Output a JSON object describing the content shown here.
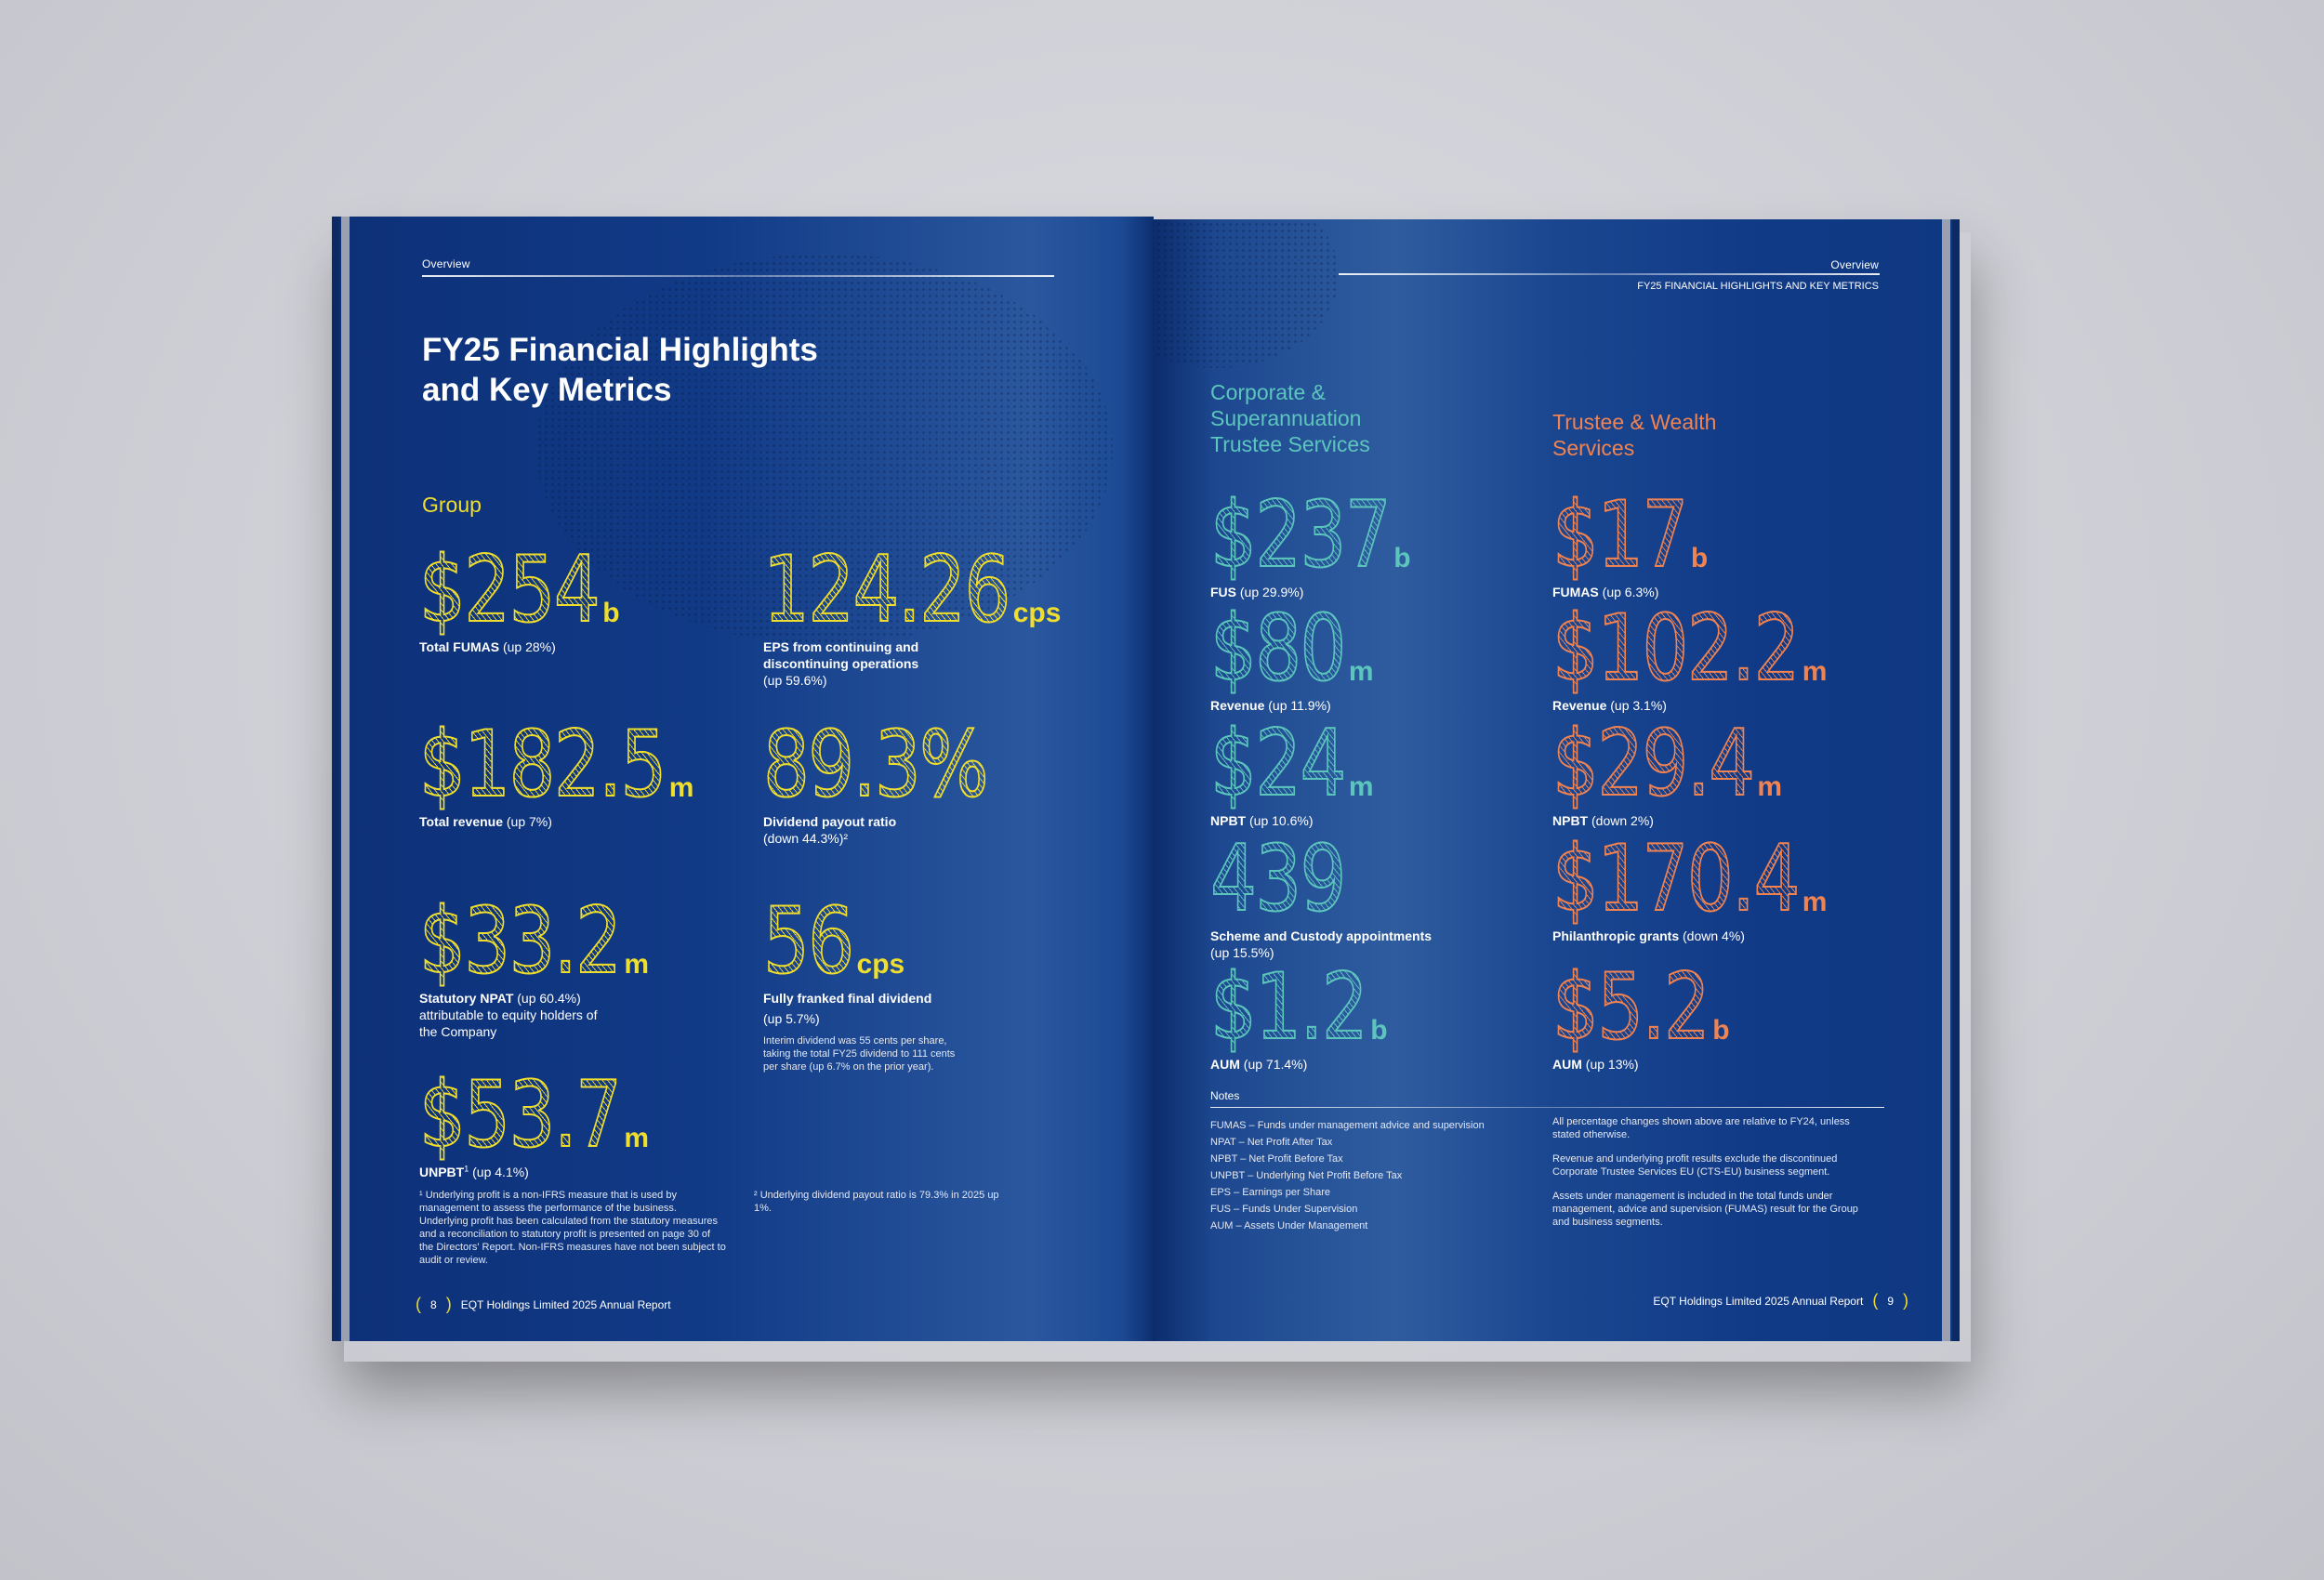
{
  "colors": {
    "yellow": "#f0de2e",
    "teal": "#5cc6bd",
    "orange": "#f08352",
    "page_blue": "#113a86"
  },
  "left_page": {
    "section": "Overview",
    "title_line1": "FY25 Financial Highlights",
    "title_line2": "and Key Metrics",
    "group_heading": "Group",
    "metrics": [
      {
        "value": "$254",
        "unit": "b",
        "label_bold": "Total FUMAS",
        "label_rest": " (up 28%)"
      },
      {
        "value": "124.26",
        "unit": "cps",
        "label_bold": "EPS from continuing and discontinuing operations",
        "label_rest": "(up 59.6%)"
      },
      {
        "value": "$182.5",
        "unit": "m",
        "label_bold": "Total revenue",
        "label_rest": " (up 7%)"
      },
      {
        "value": "89.3%",
        "unit": "",
        "label_bold": "Dividend payout ratio",
        "label_rest": "(down 44.3%)²"
      },
      {
        "value": "$33.2",
        "unit": "m",
        "label_bold": "Statutory NPAT",
        "label_rest": " (up 60.4%) attributable to equity holders of the Company"
      },
      {
        "value": "56",
        "unit": "cps",
        "label_bold": "Fully franked final dividend",
        "label_rest": "(up 5.7%)",
        "note": "Interim dividend was 55 cents per share, taking the total FY25 dividend to 111 cents per share (up 6.7% on the prior year)."
      },
      {
        "value": "$53.7",
        "unit": "m",
        "label_bold": "UNPBT",
        "label_sup": "1",
        "label_rest": " (up 4.1%)"
      }
    ],
    "footnote1": "¹ Underlying profit is a non-IFRS measure that is used by management to assess the performance of the business. Underlying profit has been calculated from the statutory measures and a reconciliation to statutory profit is presented on page 30 of the Directors' Report. Non-IFRS measures have not been subject to audit or review.",
    "footnote2": "² Underlying dividend payout ratio is 79.3% in 2025 up 1%.",
    "page_number": "8",
    "footer": "EQT Holdings Limited 2025 Annual Report"
  },
  "right_page": {
    "section": "Overview",
    "subtitle": "FY25 FINANCIAL HIGHLIGHTS AND KEY METRICS",
    "col1_heading": "Corporate & Superannuation Trustee Services",
    "col2_heading": "Trustee & Wealth Services",
    "col1": [
      {
        "value": "$237",
        "unit": "b",
        "label_bold": "FUS",
        "label_rest": " (up 29.9%)"
      },
      {
        "value": "$80",
        "unit": "m",
        "label_bold": "Revenue",
        "label_rest": " (up 11.9%)"
      },
      {
        "value": "$24",
        "unit": "m",
        "label_bold": "NPBT",
        "label_rest": " (up 10.6%)"
      },
      {
        "value": "439",
        "unit": "",
        "label_bold": "Scheme and Custody appointments",
        "label_rest": "(up 15.5%)"
      },
      {
        "value": "$1.2",
        "unit": "b",
        "label_bold": "AUM",
        "label_rest": " (up 71.4%)"
      }
    ],
    "col2": [
      {
        "value": "$17",
        "unit": "b",
        "label_bold": "FUMAS",
        "label_rest": " (up 6.3%)"
      },
      {
        "value": "$102.2",
        "unit": "m",
        "label_bold": "Revenue",
        "label_rest": " (up 3.1%)"
      },
      {
        "value": "$29.4",
        "unit": "m",
        "label_bold": "NPBT",
        "label_rest": " (down 2%)"
      },
      {
        "value": "$170.4",
        "unit": "m",
        "label_bold": "Philanthropic grants",
        "label_rest": " (down 4%)"
      },
      {
        "value": "$5.2",
        "unit": "b",
        "label_bold": "AUM",
        "label_rest": " (up 13%)"
      }
    ],
    "notes_heading": "Notes",
    "notes": [
      "FUMAS – Funds under management advice and supervision",
      "NPAT – Net Profit After Tax",
      "NPBT – Net Profit Before Tax",
      "UNPBT – Underlying Net Profit Before Tax",
      "EPS – Earnings per Share",
      "FUS – Funds Under Supervision",
      "AUM – Assets Under Management"
    ],
    "remarks": [
      "All percentage changes shown above are relative to FY24, unless stated otherwise.",
      "Revenue and underlying profit results exclude the discontinued Corporate Trustee Services EU (CTS-EU) business segment.",
      "Assets under management is included in the total funds under management, advice and supervision (FUMAS) result for the Group and business segments."
    ],
    "page_number": "9",
    "footer": "EQT Holdings Limited 2025 Annual Report"
  }
}
